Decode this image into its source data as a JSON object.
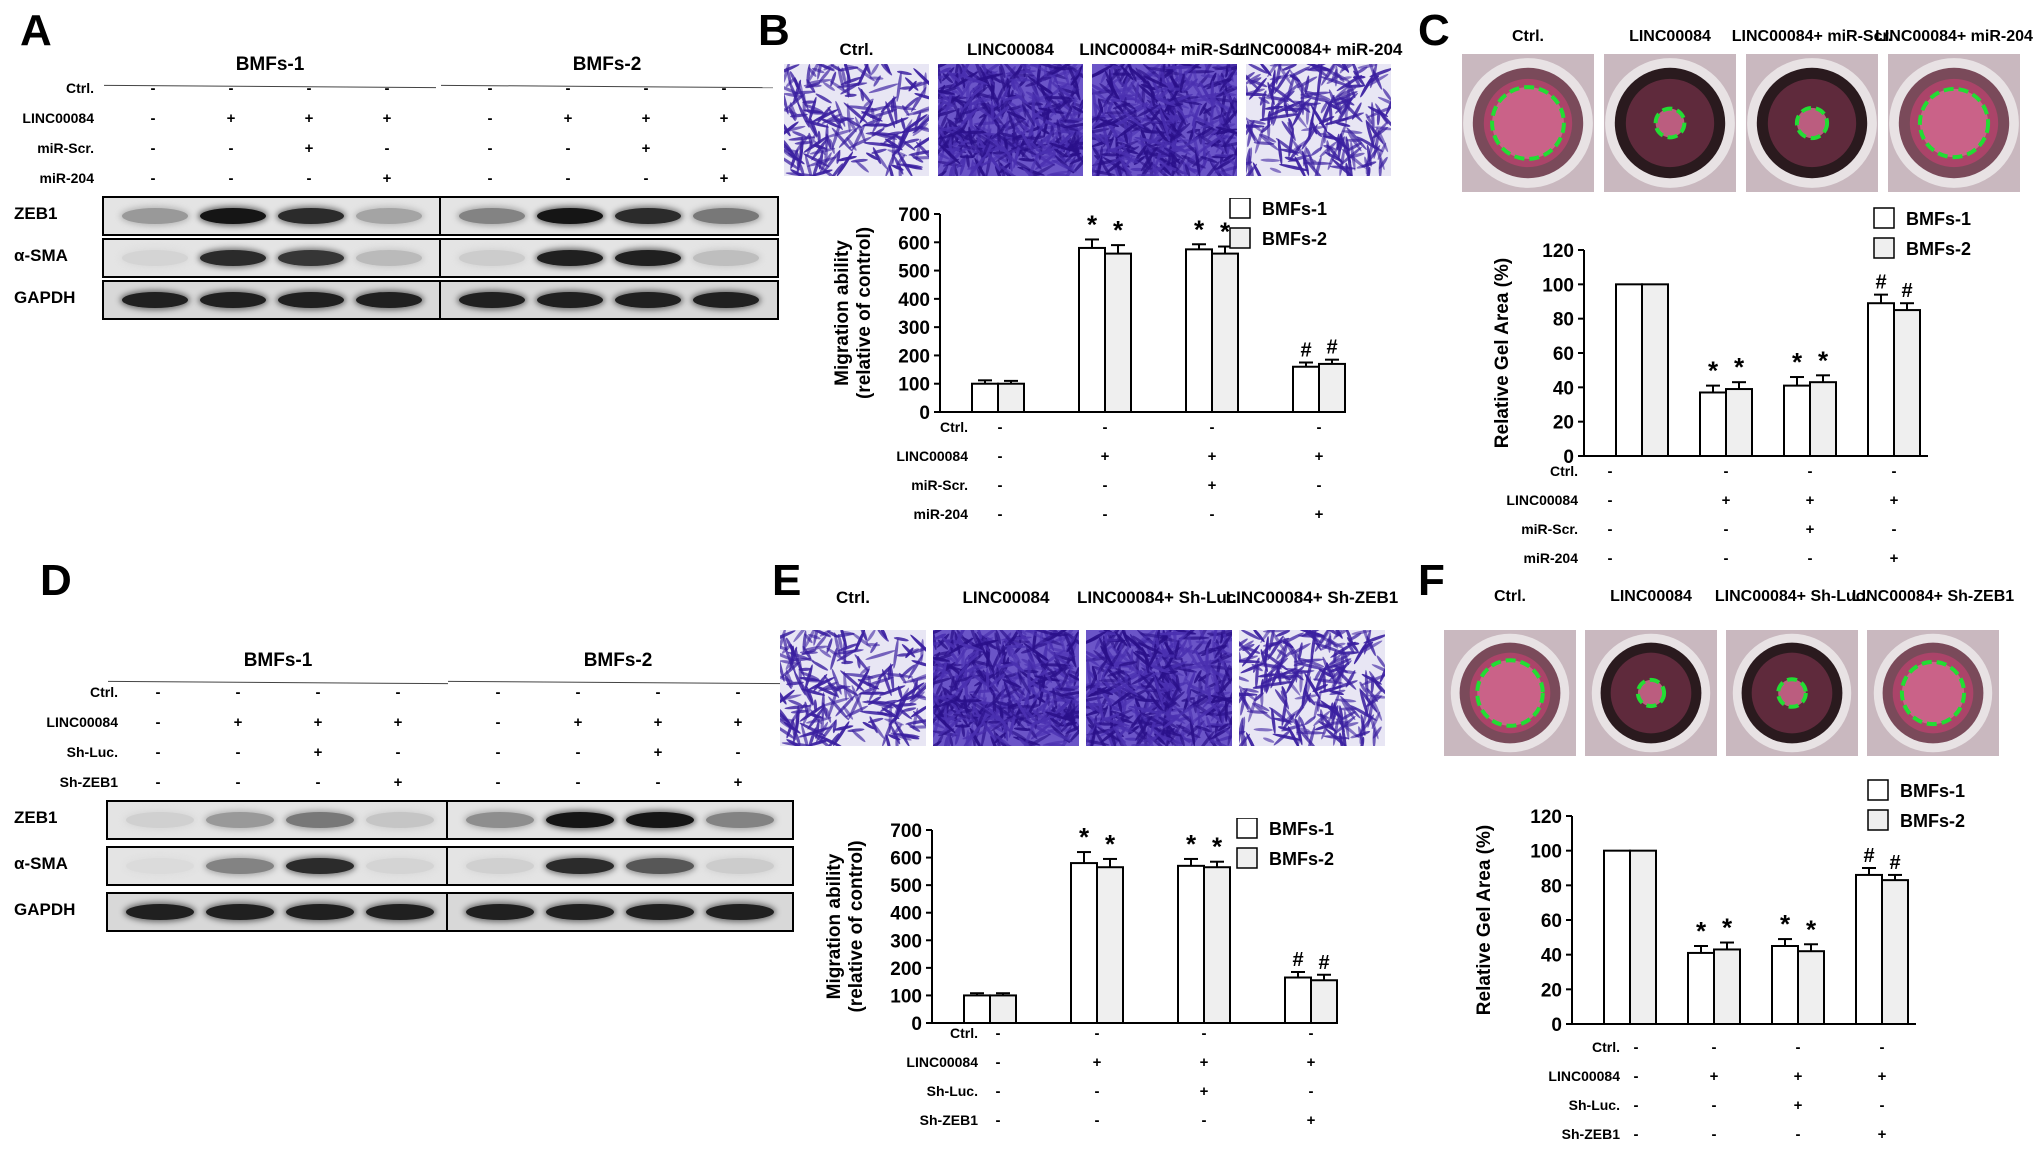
{
  "panels": {
    "A": {
      "letter": "A",
      "groups": [
        "BMFs-1",
        "BMFs-2"
      ],
      "conditions": [
        "Ctrl.",
        "LINC00084",
        "miR-Scr.",
        "miR-204"
      ],
      "signs": [
        [
          "-",
          "-",
          "-",
          "-"
        ],
        [
          "-",
          "+",
          "+",
          "+"
        ],
        [
          "-",
          "-",
          "+",
          "-"
        ],
        [
          "-",
          "-",
          "-",
          "+"
        ]
      ],
      "blots": [
        {
          "name": "ZEB1",
          "intensity_bmfs1": [
            0.35,
            0.95,
            0.85,
            0.3
          ],
          "intensity_bmfs2": [
            0.45,
            0.95,
            0.85,
            0.5
          ]
        },
        {
          "name": "α-SMA",
          "intensity_bmfs1": [
            0.08,
            0.85,
            0.8,
            0.2
          ],
          "intensity_bmfs2": [
            0.12,
            0.9,
            0.9,
            0.18
          ]
        },
        {
          "name": "GAPDH",
          "intensity_bmfs1": [
            0.9,
            0.9,
            0.9,
            0.9
          ],
          "intensity_bmfs2": [
            0.9,
            0.9,
            0.9,
            0.9
          ]
        }
      ]
    },
    "B": {
      "letter": "B",
      "images": [
        "Ctrl.",
        "LINC00084",
        "LINC00084+\nmiR-Scr.",
        "LINC00084+\nmiR-204"
      ],
      "image_density": [
        0.25,
        0.95,
        0.85,
        0.3
      ]
    },
    "C": {
      "letter": "C",
      "images": [
        "Ctrl.",
        "LINC00084",
        "LINC00084+\nmiR-Scr.",
        "LINC00084+\nmiR-204"
      ],
      "gel_size": [
        1.0,
        0.4,
        0.42,
        0.95
      ]
    },
    "D": {
      "letter": "D",
      "groups": [
        "BMFs-1",
        "BMFs-2"
      ],
      "conditions": [
        "Ctrl.",
        "LINC00084",
        "Sh-Luc.",
        "Sh-ZEB1"
      ],
      "signs": [
        [
          "-",
          "-",
          "-",
          "-"
        ],
        [
          "-",
          "+",
          "+",
          "+"
        ],
        [
          "-",
          "-",
          "+",
          "-"
        ],
        [
          "-",
          "-",
          "-",
          "+"
        ]
      ],
      "blots": [
        {
          "name": "ZEB1",
          "intensity_bmfs1": [
            0.1,
            0.35,
            0.5,
            0.15
          ],
          "intensity_bmfs2": [
            0.4,
            0.95,
            0.95,
            0.45
          ]
        },
        {
          "name": "α-SMA",
          "intensity_bmfs1": [
            0.05,
            0.45,
            0.85,
            0.08
          ],
          "intensity_bmfs2": [
            0.1,
            0.85,
            0.65,
            0.12
          ]
        },
        {
          "name": "GAPDH",
          "intensity_bmfs1": [
            0.9,
            0.9,
            0.9,
            0.9
          ],
          "intensity_bmfs2": [
            0.9,
            0.9,
            0.9,
            0.9
          ]
        }
      ]
    },
    "E": {
      "letter": "E",
      "images": [
        "Ctrl.",
        "LINC00084",
        "LINC00084+\nSh-Luc.",
        "LINC00084+\nSh-ZEB1"
      ],
      "image_density": [
        0.28,
        0.95,
        0.9,
        0.35
      ]
    },
    "F": {
      "letter": "F",
      "images": [
        "Ctrl.",
        "LINC00084",
        "LINC00084+\nSh-Luc.",
        "LINC00084+\nSh-ZEB1"
      ],
      "gel_size": [
        1.0,
        0.4,
        0.42,
        0.95
      ]
    }
  },
  "chart_data": [
    {
      "panel": "B",
      "type": "bar",
      "ylabel": "Migration ability\n(relative of control)",
      "ylim": [
        0,
        700
      ],
      "yticks": [
        0,
        100,
        200,
        300,
        400,
        500,
        600,
        700
      ],
      "categories": [
        "1",
        "2",
        "3",
        "4"
      ],
      "series": [
        {
          "name": "BMFs-1",
          "values": [
            100,
            580,
            575,
            160
          ],
          "errors": [
            12,
            30,
            18,
            15
          ]
        },
        {
          "name": "BMFs-2",
          "values": [
            100,
            560,
            560,
            170
          ],
          "errors": [
            10,
            30,
            25,
            15
          ]
        }
      ],
      "marks": [
        [
          "",
          ""
        ],
        [
          "*",
          "*"
        ],
        [
          "*",
          "*"
        ],
        [
          "#",
          "#"
        ]
      ],
      "condition_rows": [
        "Ctrl.",
        "LINC00084",
        "miR-Scr.",
        "miR-204"
      ],
      "signs": [
        [
          "-",
          "-",
          "-",
          "-"
        ],
        [
          "-",
          "+",
          "+",
          "+"
        ],
        [
          "-",
          "-",
          "+",
          "-"
        ],
        [
          "-",
          "-",
          "-",
          "+"
        ]
      ],
      "legend_position": "top-right"
    },
    {
      "panel": "C",
      "type": "bar",
      "ylabel": "Relative Gel Area (%)",
      "ylim": [
        0,
        120
      ],
      "yticks": [
        0,
        20,
        40,
        60,
        80,
        100,
        120
      ],
      "categories": [
        "1",
        "2",
        "3",
        "4"
      ],
      "series": [
        {
          "name": "BMFs-1",
          "values": [
            100,
            37,
            41,
            89
          ],
          "errors": [
            0,
            4,
            5,
            5
          ]
        },
        {
          "name": "BMFs-2",
          "values": [
            100,
            39,
            43,
            85
          ],
          "errors": [
            0,
            4,
            4,
            4
          ]
        }
      ],
      "marks": [
        [
          "",
          ""
        ],
        [
          "*",
          "*"
        ],
        [
          "*",
          "*"
        ],
        [
          "#",
          "#"
        ]
      ],
      "condition_rows": [
        "Ctrl.",
        "LINC00084",
        "miR-Scr.",
        "miR-204"
      ],
      "signs": [
        [
          "-",
          "-",
          "-",
          "-"
        ],
        [
          "-",
          "+",
          "+",
          "+"
        ],
        [
          "-",
          "-",
          "+",
          "-"
        ],
        [
          "-",
          "-",
          "-",
          "+"
        ]
      ],
      "legend_position": "top-right"
    },
    {
      "panel": "E",
      "type": "bar",
      "ylabel": "Migration ability\n(relative of control)",
      "ylim": [
        0,
        700
      ],
      "yticks": [
        0,
        100,
        200,
        300,
        400,
        500,
        600,
        700
      ],
      "categories": [
        "1",
        "2",
        "3",
        "4"
      ],
      "series": [
        {
          "name": "BMFs-1",
          "values": [
            100,
            580,
            570,
            165
          ],
          "errors": [
            8,
            40,
            25,
            20
          ]
        },
        {
          "name": "BMFs-2",
          "values": [
            100,
            565,
            565,
            155
          ],
          "errors": [
            8,
            30,
            20,
            20
          ]
        }
      ],
      "marks": [
        [
          "",
          ""
        ],
        [
          "*",
          "*"
        ],
        [
          "*",
          "*"
        ],
        [
          "#",
          "#"
        ]
      ],
      "condition_rows": [
        "Ctrl.",
        "LINC00084",
        "Sh-Luc.",
        "Sh-ZEB1"
      ],
      "signs": [
        [
          "-",
          "-",
          "-",
          "-"
        ],
        [
          "-",
          "+",
          "+",
          "+"
        ],
        [
          "-",
          "-",
          "+",
          "-"
        ],
        [
          "-",
          "-",
          "-",
          "+"
        ]
      ],
      "legend_position": "top-right"
    },
    {
      "panel": "F",
      "type": "bar",
      "ylabel": "Relative Gel Area (%)",
      "ylim": [
        0,
        120
      ],
      "yticks": [
        0,
        20,
        40,
        60,
        80,
        100,
        120
      ],
      "categories": [
        "1",
        "2",
        "3",
        "4"
      ],
      "series": [
        {
          "name": "BMFs-1",
          "values": [
            100,
            41,
            45,
            86
          ],
          "errors": [
            0,
            4,
            4,
            4
          ]
        },
        {
          "name": "BMFs-2",
          "values": [
            100,
            43,
            42,
            83
          ],
          "errors": [
            0,
            4,
            4,
            3
          ]
        }
      ],
      "marks": [
        [
          "",
          ""
        ],
        [
          "*",
          "*"
        ],
        [
          "*",
          "*"
        ],
        [
          "#",
          "#"
        ]
      ],
      "condition_rows": [
        "Ctrl.",
        "LINC00084",
        "Sh-Luc.",
        "Sh-ZEB1"
      ],
      "signs": [
        [
          "-",
          "-",
          "-",
          "-"
        ],
        [
          "-",
          "+",
          "+",
          "+"
        ],
        [
          "-",
          "-",
          "+",
          "-"
        ],
        [
          "-",
          "-",
          "-",
          "+"
        ]
      ],
      "legend_position": "top-right"
    }
  ],
  "colors": {
    "bmfs1_fill": "#ffffff",
    "bmfs2_fill": "#efefef",
    "crystal_violet": "#3a1fa0",
    "crystal_bg": "#e8e6f4",
    "gel_ring": "#22dd33",
    "well_pink": "#b0446a"
  }
}
